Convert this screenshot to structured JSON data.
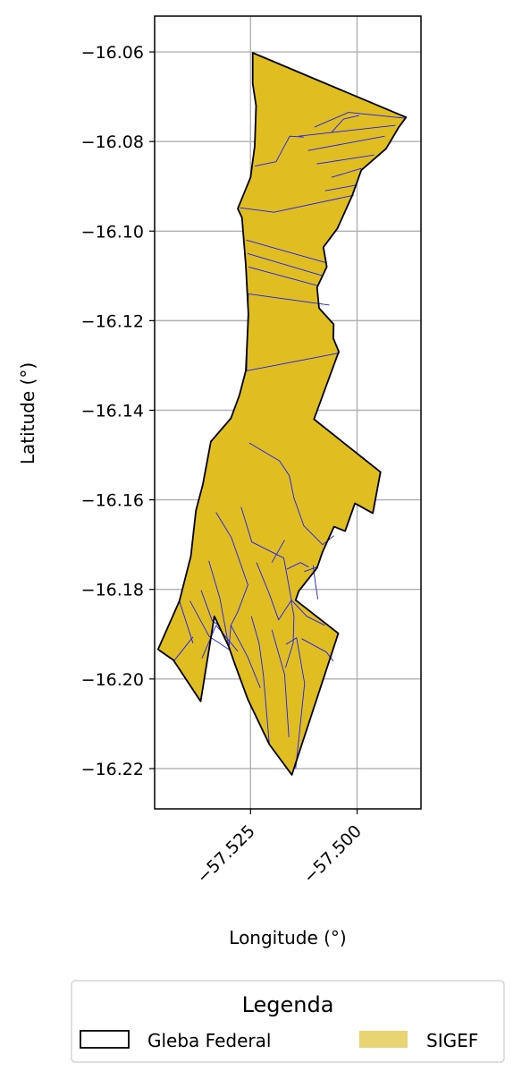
{
  "chart_data": {
    "type": "map",
    "xlabel": "Longitude (°)",
    "ylabel": "Latitude (°)",
    "xlim": [
      -57.5475,
      -57.485
    ],
    "ylim": [
      -16.229,
      -16.052
    ],
    "x_ticks": [
      {
        "value": -57.525,
        "label": "−57.525"
      },
      {
        "value": -57.5,
        "label": "−57.500"
      }
    ],
    "y_ticks": [
      {
        "value": -16.06,
        "label": "−16.06"
      },
      {
        "value": -16.08,
        "label": "−16.08"
      },
      {
        "value": -16.1,
        "label": "−16.10"
      },
      {
        "value": -16.12,
        "label": "−16.12"
      },
      {
        "value": -16.14,
        "label": "−16.14"
      },
      {
        "value": -16.16,
        "label": "−16.16"
      },
      {
        "value": -16.18,
        "label": "−16.18"
      },
      {
        "value": -16.2,
        "label": "−16.20"
      },
      {
        "value": -16.22,
        "label": "−16.22"
      }
    ],
    "grid": true,
    "legend": {
      "title": "Legenda",
      "placement": "bottom",
      "entries": [
        {
          "label": "Gleba Federal",
          "style": "outline",
          "color": "#000000"
        },
        {
          "label": "SIGEF",
          "style": "fill",
          "color": "#e8d473"
        }
      ]
    },
    "layers": {
      "gleba_federal": {
        "name": "Gleba Federal",
        "stroke": "#000000",
        "outline": [
          [
            -57.5245,
            -16.0602
          ],
          [
            -57.4885,
            -16.0746
          ],
          [
            -57.4902,
            -16.0768
          ],
          [
            -57.4922,
            -16.08
          ],
          [
            -57.4932,
            -16.0816
          ],
          [
            -57.499,
            -16.0864
          ],
          [
            -57.5011,
            -16.092
          ],
          [
            -57.5046,
            -16.0994
          ],
          [
            -57.5079,
            -16.1036
          ],
          [
            -57.5071,
            -16.108
          ],
          [
            -57.5094,
            -16.1126
          ],
          [
            -57.5089,
            -16.1172
          ],
          [
            -57.5055,
            -16.1208
          ],
          [
            -57.5056,
            -16.1239
          ],
          [
            -57.5043,
            -16.1269
          ],
          [
            -57.5101,
            -16.142
          ],
          [
            -57.4945,
            -16.1538
          ],
          [
            -57.4963,
            -16.163
          ],
          [
            -57.5005,
            -16.1608
          ],
          [
            -57.5028,
            -16.167
          ],
          [
            -57.5054,
            -16.166
          ],
          [
            -57.5081,
            -16.1716
          ],
          [
            -57.5094,
            -16.1752
          ],
          [
            -57.5137,
            -16.1804
          ],
          [
            -57.5144,
            -16.1824
          ],
          [
            -57.5044,
            -16.1898
          ],
          [
            -57.5153,
            -16.2214
          ],
          [
            -57.5206,
            -16.2146
          ],
          [
            -57.5256,
            -16.2046
          ],
          [
            -57.5287,
            -16.1966
          ],
          [
            -57.5301,
            -16.1928
          ],
          [
            -57.5335,
            -16.186
          ],
          [
            -57.5367,
            -16.205
          ],
          [
            -57.5431,
            -16.1958
          ],
          [
            -57.5467,
            -16.1934
          ],
          [
            -57.5417,
            -16.1826
          ],
          [
            -57.539,
            -16.1726
          ],
          [
            -57.5378,
            -16.1624
          ],
          [
            -57.5362,
            -16.1566
          ],
          [
            -57.5343,
            -16.147
          ],
          [
            -57.5296,
            -16.1418
          ],
          [
            -57.5276,
            -16.1366
          ],
          [
            -57.5261,
            -16.1312
          ],
          [
            -57.5255,
            -16.1186
          ],
          [
            -57.5261,
            -16.1076
          ],
          [
            -57.527,
            -16.097
          ],
          [
            -57.528,
            -16.095
          ],
          [
            -57.525,
            -16.088
          ],
          [
            -57.524,
            -16.081
          ],
          [
            -57.5237,
            -16.072
          ],
          [
            -57.5245,
            -16.067
          ],
          [
            -57.5245,
            -16.0602
          ]
        ]
      },
      "sigef": {
        "name": "SIGEF",
        "fill": "#e0be22",
        "stroke": "#1a1aff",
        "parcel_lines": [
          [
            [
              -57.5275,
              -16.0948
            ],
            [
              -57.5195,
              -16.0958
            ],
            [
              -57.5008,
              -16.092
            ]
          ],
          [
            [
              -57.524,
              -16.0855
            ],
            [
              -57.519,
              -16.0845
            ],
            [
              -57.5158,
              -16.0788
            ],
            [
              -57.5125,
              -16.079
            ]
          ],
          [
            [
              -57.5137,
              -16.0788
            ],
            [
              -57.491,
              -16.0764
            ]
          ],
          [
            [
              -57.5115,
              -16.082
            ],
            [
              -57.4935,
              -16.0788
            ]
          ],
          [
            [
              -57.5095,
              -16.085
            ],
            [
              -57.496,
              -16.083
            ]
          ],
          [
            [
              -57.506,
              -16.088
            ],
            [
              -57.499,
              -16.086
            ]
          ],
          [
            [
              -57.5075,
              -16.091
            ],
            [
              -57.5005,
              -16.0898
            ]
          ],
          [
            [
              -57.51,
              -16.0768
            ],
            [
              -57.502,
              -16.0735
            ],
            [
              -57.4888,
              -16.0748
            ]
          ],
          [
            [
              -57.506,
              -16.078
            ],
            [
              -57.5032,
              -16.075
            ],
            [
              -57.4995,
              -16.0742
            ]
          ],
          [
            [
              -57.526,
              -16.102
            ],
            [
              -57.5075,
              -16.107
            ]
          ],
          [
            [
              -57.5257,
              -16.105
            ],
            [
              -57.508,
              -16.11
            ]
          ],
          [
            [
              -57.5255,
              -16.108
            ],
            [
              -57.5092,
              -16.1122
            ]
          ],
          [
            [
              -57.5255,
              -16.114
            ],
            [
              -57.5065,
              -16.1165
            ]
          ],
          [
            [
              -57.5255,
              -16.114
            ],
            [
              -57.5259,
              -16.1312
            ],
            [
              -57.5041,
              -16.1272
            ]
          ],
          [
            [
              -57.5253,
              -16.1473
            ],
            [
              -57.5182,
              -16.1513
            ],
            [
              -57.5159,
              -16.1546
            ],
            [
              -57.5148,
              -16.1596
            ],
            [
              -57.5125,
              -16.1658
            ],
            [
              -57.5081,
              -16.17
            ],
            [
              -57.5054,
              -16.168
            ]
          ],
          [
            [
              -57.5272,
              -16.1616
            ],
            [
              -57.5247,
              -16.1694
            ],
            [
              -57.5172,
              -16.173
            ],
            [
              -57.5154,
              -16.1824
            ]
          ],
          [
            [
              -57.52,
              -16.174
            ],
            [
              -57.517,
              -16.169
            ]
          ],
          [
            [
              -57.5236,
              -16.174
            ],
            [
              -57.5206,
              -16.181
            ],
            [
              -57.5184,
              -16.1868
            ],
            [
              -57.5154,
              -16.1824
            ]
          ],
          [
            [
              -57.5165,
              -16.1755
            ],
            [
              -57.5133,
              -16.174
            ],
            [
              -57.5114,
              -16.175
            ]
          ],
          [
            [
              -57.5124,
              -16.176
            ],
            [
              -57.5094,
              -16.175
            ]
          ],
          [
            [
              -57.5103,
              -16.1746
            ],
            [
              -57.5098,
              -16.1785
            ],
            [
              -57.5092,
              -16.1822
            ]
          ],
          [
            [
              -57.5331,
              -16.1628
            ],
            [
              -57.5295,
              -16.1684
            ],
            [
              -57.5256,
              -16.179
            ],
            [
              -57.528,
              -16.185
            ],
            [
              -57.5296,
              -16.188
            ]
          ],
          [
            [
              -57.5348,
              -16.1736
            ],
            [
              -57.5322,
              -16.182
            ],
            [
              -57.5301,
              -16.1928
            ]
          ],
          [
            [
              -57.5366,
              -16.1802
            ],
            [
              -57.534,
              -16.187
            ],
            [
              -57.5325,
              -16.188
            ]
          ],
          [
            [
              -57.5392,
              -16.1826
            ],
            [
              -57.5347,
              -16.1905
            ],
            [
              -57.5301,
              -16.1934
            ],
            [
              -57.5296,
              -16.188
            ]
          ],
          [
            [
              -57.5417,
              -16.1826
            ],
            [
              -57.5385,
              -16.192
            ]
          ],
          [
            [
              -57.5331,
              -16.188
            ],
            [
              -57.528,
              -16.1938
            ]
          ],
          [
            [
              -57.5364,
              -16.1954
            ],
            [
              -57.5331,
              -16.188
            ]
          ],
          [
            [
              -57.5155,
              -16.1824
            ],
            [
              -57.5148,
              -16.186
            ],
            [
              -57.515,
              -16.192
            ],
            [
              -57.5168,
              -16.1975
            ]
          ],
          [
            [
              -57.5154,
              -16.1824
            ],
            [
              -57.5118,
              -16.186
            ],
            [
              -57.5076,
              -16.188
            ]
          ],
          [
            [
              -57.5167,
              -16.1923
            ],
            [
              -57.5142,
              -16.1908
            ],
            [
              -57.5123,
              -16.201
            ],
            [
              -57.5144,
              -16.22
            ]
          ],
          [
            [
              -57.513,
              -16.191
            ],
            [
              -57.5072,
              -16.194
            ],
            [
              -57.5056,
              -16.196
            ]
          ],
          [
            [
              -57.52,
              -16.189
            ],
            [
              -57.517,
              -16.199
            ],
            [
              -57.516,
              -16.213
            ]
          ],
          [
            [
              -57.5248,
              -16.186
            ],
            [
              -57.523,
              -16.192
            ],
            [
              -57.522,
              -16.199
            ],
            [
              -57.5206,
              -16.2146
            ]
          ],
          [
            [
              -57.5296,
              -16.188
            ],
            [
              -57.5257,
              -16.195
            ],
            [
              -57.5227,
              -16.202
            ]
          ],
          [
            [
              -57.543,
              -16.196
            ],
            [
              -57.5385,
              -16.1906
            ]
          ]
        ]
      }
    }
  }
}
